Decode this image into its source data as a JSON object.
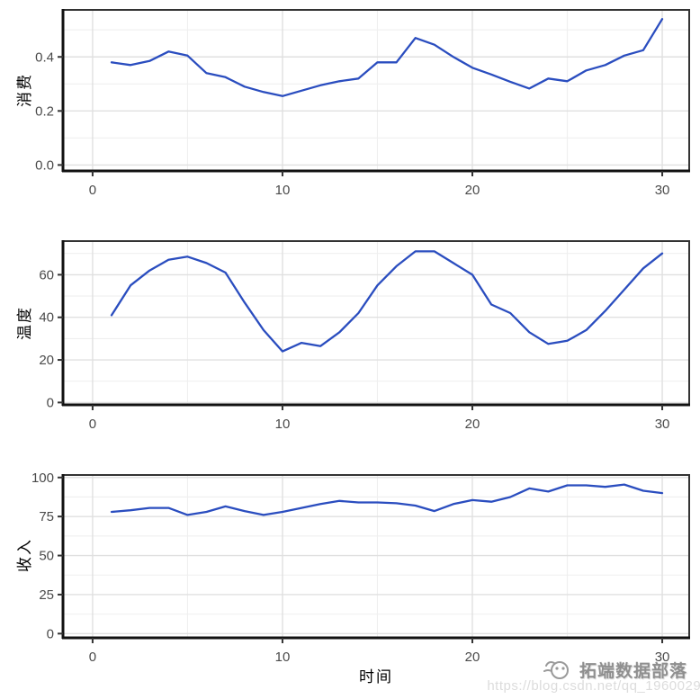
{
  "page": {
    "background": "#ffffff"
  },
  "x_axis": {
    "title": "时间",
    "tick_labels": [
      "0",
      "10",
      "20",
      "30"
    ],
    "tick_values": [
      0,
      10,
      20,
      30
    ],
    "minor_values": [
      5,
      15,
      25
    ],
    "range": [
      -1.56,
      31.42
    ]
  },
  "style": {
    "line_color": "#2a4dbf",
    "grid_major_color": "#e0e0e0",
    "grid_minor_color": "#efefef",
    "border_color": "#333333",
    "axis_color": "#111111",
    "tick_label_color": "#4a4a4a"
  },
  "chart_data": [
    {
      "type": "line",
      "name": "consumption",
      "ylabel": "消费",
      "ytick_labels": [
        "0.0",
        "0.2",
        "0.4"
      ],
      "ytick_values": [
        0,
        0.2,
        0.4
      ],
      "y_minor": [
        0.1,
        0.3,
        0.5
      ],
      "ylim": [
        -0.022,
        0.574
      ],
      "x": [
        1,
        2,
        3,
        4,
        5,
        6,
        7,
        8,
        9,
        10,
        11,
        12,
        13,
        14,
        15,
        16,
        17,
        18,
        19,
        20,
        21,
        22,
        23,
        24,
        25,
        26,
        27,
        28,
        29,
        30
      ],
      "values": [
        0.38,
        0.37,
        0.385,
        0.42,
        0.405,
        0.34,
        0.325,
        0.29,
        0.27,
        0.255,
        0.275,
        0.295,
        0.31,
        0.32,
        0.38,
        0.38,
        0.47,
        0.445,
        0.4,
        0.36,
        0.335,
        0.308,
        0.283,
        0.32,
        0.31,
        0.35,
        0.37,
        0.405,
        0.425,
        0.54
      ]
    },
    {
      "type": "line",
      "name": "temperature",
      "ylabel": "温度",
      "ytick_labels": [
        "0",
        "20",
        "40",
        "60"
      ],
      "ytick_values": [
        0,
        20,
        40,
        60
      ],
      "y_minor": [
        10,
        30,
        50,
        70
      ],
      "ylim": [
        -1.1,
        75.8
      ],
      "x": [
        1,
        2,
        3,
        4,
        5,
        6,
        7,
        8,
        9,
        10,
        11,
        12,
        13,
        14,
        15,
        16,
        17,
        18,
        19,
        20,
        21,
        22,
        23,
        24,
        25,
        26,
        27,
        28,
        29,
        30
      ],
      "values": [
        41,
        55,
        62,
        67,
        68.5,
        65.5,
        61,
        47,
        34,
        24,
        28,
        26.5,
        33,
        42,
        55,
        64,
        71,
        71,
        65.5,
        60,
        46,
        42,
        33,
        27.5,
        29,
        34,
        43,
        53,
        63,
        70
      ]
    },
    {
      "type": "line",
      "name": "income",
      "ylabel": "收入",
      "ytick_labels": [
        "0",
        "25",
        "50",
        "75",
        "100"
      ],
      "ytick_values": [
        0,
        25,
        50,
        75,
        100
      ],
      "y_minor": [
        12.5,
        37.5,
        62.5,
        87.5
      ],
      "ylim": [
        -2.7,
        101.6
      ],
      "x": [
        1,
        2,
        3,
        4,
        5,
        6,
        7,
        8,
        9,
        10,
        11,
        12,
        13,
        14,
        15,
        16,
        17,
        18,
        19,
        20,
        21,
        22,
        23,
        24,
        25,
        26,
        27,
        28,
        29,
        30
      ],
      "values": [
        78,
        79,
        80.5,
        80.5,
        76,
        78,
        81.5,
        78.5,
        76,
        78,
        80.5,
        83,
        85,
        84,
        84,
        83.5,
        82,
        78.5,
        83,
        85.5,
        84.5,
        87.5,
        93,
        91,
        95,
        95,
        94,
        95.5,
        91.5,
        90
      ]
    }
  ],
  "watermark": {
    "brand": "拓端数据部落",
    "url": "https://blog.csdn.net/qq_19600291",
    "logo_icon": "tuoduan-mascot"
  }
}
